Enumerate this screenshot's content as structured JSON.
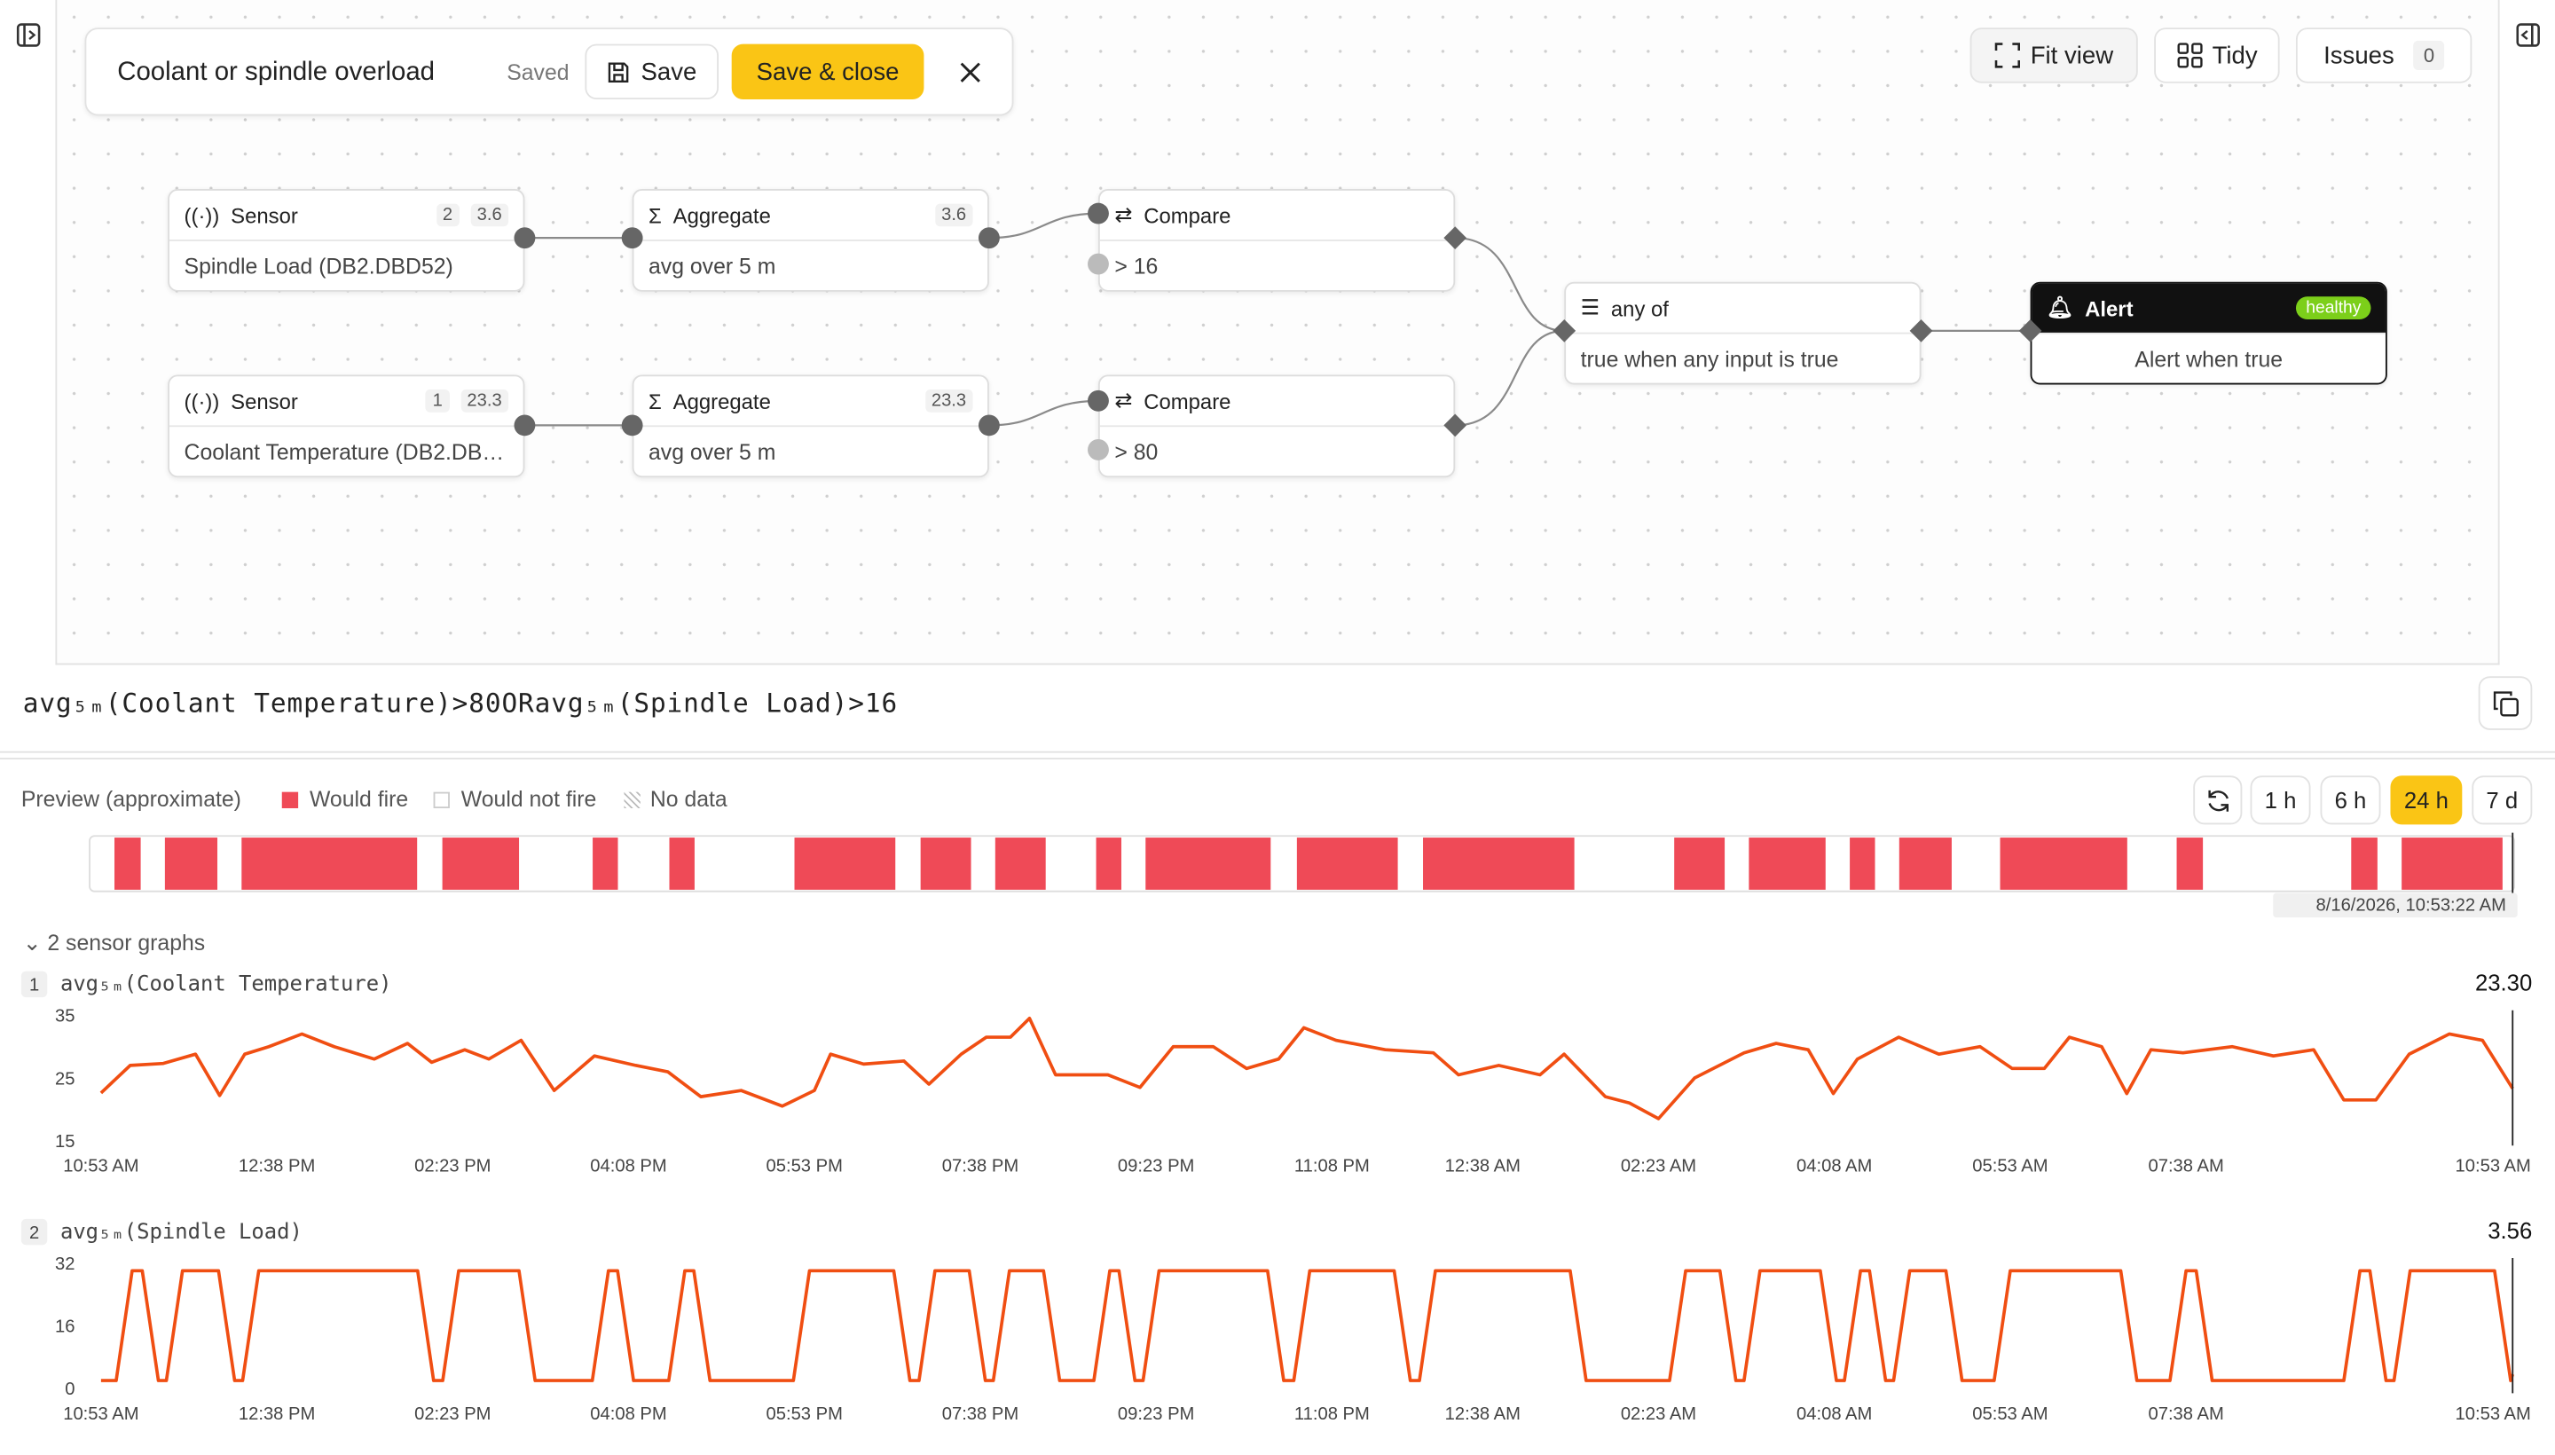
{
  "toolbar": {
    "title": "Coolant or spindle overload",
    "status": "Saved",
    "save": "Save",
    "save_close": "Save & close"
  },
  "view_controls": {
    "fit": "Fit view",
    "tidy": "Tidy",
    "issues": "Issues",
    "issues_count": 0
  },
  "nodes": [
    {
      "type": "Sensor",
      "badge": 2,
      "value": 3.6,
      "detail": "Spindle Load (DB2.DBD52)"
    },
    {
      "type": "Aggregate",
      "value": 3.6,
      "detail": "avg over 5 m"
    },
    {
      "type": "Compare",
      "detail": "> 16"
    },
    {
      "type": "Sensor",
      "badge": 1,
      "value": 23.3,
      "detail": "Coolant Temperature (DB2.DB…"
    },
    {
      "type": "Aggregate",
      "value": 23.3,
      "detail": "avg over 5 m"
    },
    {
      "type": "Compare",
      "detail": "> 80"
    },
    {
      "type": "any of",
      "detail": "true when any input is true"
    },
    {
      "type": "Alert",
      "status": "healthy",
      "detail": "Alert when true"
    }
  ],
  "expression": "avg₅ₘ(Coolant Temperature)>80ORavg₅ₘ(Spindle Load)>16",
  "preview": {
    "title": "Preview (approximate)",
    "legend": [
      "Would fire",
      "Would not fire",
      "No data"
    ],
    "ranges": [
      "1 h",
      "6 h",
      "24 h",
      "7 d"
    ],
    "active_range": 2,
    "timestamp": "8/16/2026, 10:53:22 AM",
    "xlim": [
      0,
      24
    ],
    "fire_segments": [
      [
        0.23,
        0.49
      ],
      [
        0.73,
        1.25
      ],
      [
        1.49,
        3.23
      ],
      [
        3.48,
        4.24
      ],
      [
        4.97,
        5.22
      ],
      [
        5.73,
        5.98
      ],
      [
        6.97,
        7.97
      ],
      [
        8.22,
        8.72
      ],
      [
        8.96,
        9.46
      ],
      [
        9.96,
        10.21
      ],
      [
        10.45,
        11.69
      ],
      [
        11.95,
        12.95
      ],
      [
        13.2,
        14.7
      ],
      [
        15.69,
        16.19
      ],
      [
        16.43,
        17.19
      ],
      [
        17.43,
        17.68
      ],
      [
        17.92,
        18.44
      ],
      [
        18.92,
        20.18
      ],
      [
        20.67,
        20.93
      ],
      [
        22.4,
        22.66
      ],
      [
        22.9,
        23.9
      ]
    ]
  },
  "graphs_toggle": "2 sensor graphs",
  "graphs": [
    {
      "type": "line",
      "index": 1,
      "label": "avg₅ₘ(Coolant Temperature)",
      "latest": {
        "value": 23.3,
        "label": "23.30"
      },
      "color": "#f04e12",
      "xlim": [
        0,
        24
      ],
      "ylim": [
        15,
        35
      ],
      "yticks": [
        15,
        25,
        35
      ],
      "xticks": [
        {
          "value": 0,
          "label": "10:53 AM"
        },
        {
          "value": 1.75,
          "label": "12:38 PM"
        },
        {
          "value": 3.5,
          "label": "02:23 PM"
        },
        {
          "value": 5.25,
          "label": "04:08 PM"
        },
        {
          "value": 7,
          "label": "05:53 PM"
        },
        {
          "value": 8.75,
          "label": "07:38 PM"
        },
        {
          "value": 10.5,
          "label": "09:23 PM"
        },
        {
          "value": 12.25,
          "label": "11:08 PM"
        },
        {
          "value": 13.75,
          "label": "12:38 AM"
        },
        {
          "value": 15.5,
          "label": "02:23 AM"
        },
        {
          "value": 17.25,
          "label": "04:08 AM"
        },
        {
          "value": 19,
          "label": "05:53 AM"
        },
        {
          "value": 20.75,
          "label": "07:38 AM"
        },
        {
          "value": 24,
          "label": "10:53 AM"
        }
      ],
      "x": [
        0,
        0.29,
        0.62,
        0.94,
        1.18,
        1.43,
        1.67,
        2.0,
        2.32,
        2.72,
        3.05,
        3.29,
        3.62,
        3.86,
        4.18,
        4.51,
        4.91,
        5.32,
        5.64,
        5.97,
        6.37,
        6.78,
        7.1,
        7.26,
        7.59,
        7.99,
        8.24,
        8.56,
        8.81,
        9.05,
        9.24,
        9.5,
        10.02,
        10.34,
        10.67,
        11.07,
        11.4,
        11.72,
        11.97,
        12.29,
        12.78,
        13.26,
        13.51,
        13.91,
        14.32,
        14.56,
        14.97,
        15.21,
        15.5,
        15.86,
        16.35,
        16.67,
        16.99,
        17.24,
        17.48,
        17.89,
        18.29,
        18.7,
        19.02,
        19.34,
        19.59,
        19.91,
        20.16,
        20.4,
        20.72,
        21.21,
        21.62,
        22.02,
        22.32,
        22.64,
        22.97,
        23.37,
        23.7,
        24
      ],
      "values": [
        22.6,
        27,
        27.3,
        28.8,
        22.2,
        28.8,
        30,
        32,
        30,
        28,
        30.5,
        27.5,
        29.5,
        28,
        31,
        23,
        28.5,
        27,
        26,
        22,
        23,
        20.5,
        23,
        28.8,
        27.2,
        27.7,
        24,
        28.8,
        31.5,
        31.5,
        34.5,
        25.5,
        25.5,
        23.5,
        30,
        30,
        26.5,
        28,
        33,
        31,
        29.5,
        29,
        25.5,
        27,
        25.5,
        28.8,
        22,
        21,
        18.5,
        25,
        29,
        30.5,
        29.5,
        22.5,
        28,
        31.5,
        28.8,
        30,
        26.5,
        26.5,
        31.5,
        30,
        22.5,
        29.5,
        29,
        30,
        28.5,
        29.5,
        21.5,
        21.5,
        28.8,
        32,
        31,
        23.3
      ]
    },
    {
      "type": "line",
      "index": 2,
      "label": "avg₅ₘ(Spindle Load)",
      "latest": {
        "value": 3.56,
        "label": "3.56"
      },
      "color": "#f04e12",
      "xlim": [
        0,
        24
      ],
      "ylim": [
        0,
        32
      ],
      "yticks": [
        0,
        16,
        32
      ],
      "xticks": [
        {
          "value": 0,
          "label": "10:53 AM"
        },
        {
          "value": 1.75,
          "label": "12:38 PM"
        },
        {
          "value": 3.5,
          "label": "02:23 PM"
        },
        {
          "value": 5.25,
          "label": "04:08 PM"
        },
        {
          "value": 7,
          "label": "05:53 PM"
        },
        {
          "value": 8.75,
          "label": "07:38 PM"
        },
        {
          "value": 10.5,
          "label": "09:23 PM"
        },
        {
          "value": 12.25,
          "label": "11:08 PM"
        },
        {
          "value": 13.75,
          "label": "12:38 AM"
        },
        {
          "value": 15.5,
          "label": "02:23 AM"
        },
        {
          "value": 17.25,
          "label": "04:08 AM"
        },
        {
          "value": 19,
          "label": "05:53 AM"
        },
        {
          "value": 20.75,
          "label": "07:38 AM"
        },
        {
          "value": 24,
          "label": "10:53 AM"
        }
      ],
      "x": [
        0,
        0.15,
        0.31,
        0.41,
        0.57,
        0.65,
        0.81,
        1.17,
        1.33,
        1.41,
        1.57,
        3.15,
        3.31,
        3.4,
        3.56,
        4.16,
        4.32,
        4.89,
        5.05,
        5.14,
        5.3,
        5.65,
        5.81,
        5.9,
        6.06,
        6.89,
        7.05,
        7.89,
        8.05,
        8.14,
        8.3,
        8.64,
        8.8,
        8.88,
        9.04,
        9.38,
        9.54,
        9.88,
        10.04,
        10.13,
        10.29,
        10.37,
        10.53,
        11.61,
        11.77,
        11.87,
        12.03,
        12.87,
        13.03,
        13.12,
        13.28,
        14.62,
        14.78,
        15.61,
        15.77,
        16.11,
        16.27,
        16.35,
        16.51,
        17.11,
        17.27,
        17.35,
        17.51,
        17.6,
        17.76,
        17.84,
        18.0,
        18.36,
        18.52,
        18.84,
        19.0,
        20.1,
        20.26,
        20.59,
        20.75,
        20.85,
        21.01,
        22.32,
        22.48,
        22.58,
        22.74,
        22.82,
        22.98,
        23.82,
        23.98,
        24
      ],
      "values": [
        2,
        2,
        30,
        30,
        2,
        2,
        30,
        30,
        2,
        2,
        30,
        30,
        2,
        2,
        30,
        30,
        2,
        2,
        30,
        30,
        2,
        2,
        30,
        30,
        2,
        2,
        30,
        30,
        2,
        2,
        30,
        30,
        2,
        2,
        30,
        30,
        2,
        2,
        30,
        30,
        2,
        2,
        30,
        30,
        2,
        2,
        30,
        30,
        2,
        2,
        30,
        30,
        2,
        2,
        30,
        30,
        2,
        2,
        30,
        30,
        2,
        2,
        30,
        30,
        2,
        2,
        30,
        30,
        2,
        2,
        30,
        30,
        2,
        2,
        30,
        30,
        2,
        2,
        30,
        30,
        2,
        2,
        30,
        30,
        2,
        3.56
      ]
    }
  ]
}
